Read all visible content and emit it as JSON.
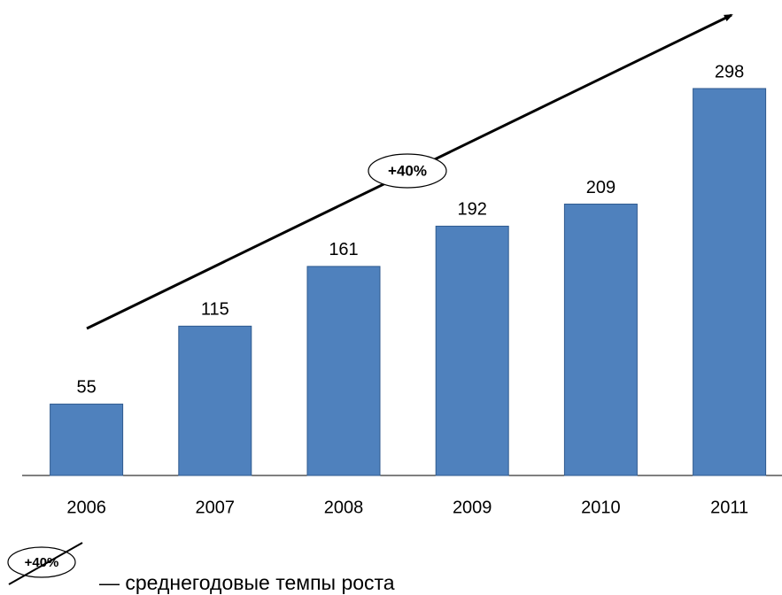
{
  "chart_data": {
    "type": "bar",
    "categories": [
      "2006",
      "2007",
      "2008",
      "2009",
      "2010",
      "2011"
    ],
    "values": [
      55,
      115,
      161,
      192,
      209,
      298
    ],
    "color": "#4f81bd",
    "annotation": "+40%",
    "legend_text": "— среднегодовые темпы роста"
  }
}
